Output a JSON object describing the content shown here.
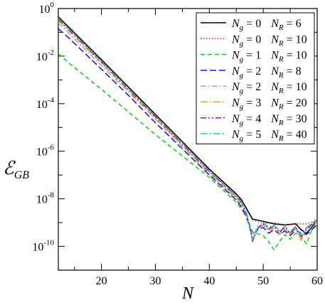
{
  "chart_data": {
    "type": "line",
    "xlabel": "N",
    "ylabel_main": "ℰ",
    "ylabel_sub": "GB",
    "xlim": [
      12,
      60
    ],
    "ylim_exp": [
      -11,
      0
    ],
    "yscale": "log",
    "x_ticks": [
      20,
      30,
      40,
      50,
      60
    ],
    "y_ticks": [
      {
        "exp": 0,
        "label": "0"
      },
      {
        "exp": -2,
        "label": "-2"
      },
      {
        "exp": -4,
        "label": "-4"
      },
      {
        "exp": -6,
        "label": "-6"
      },
      {
        "exp": -8,
        "label": "-8"
      },
      {
        "exp": -10,
        "label": "-10"
      }
    ],
    "legend_position": "top-right",
    "series": [
      {
        "ng": "0",
        "nr": "6",
        "color": "#000000",
        "dash": "",
        "width": 1.6,
        "points": [
          [
            12,
            -0.35
          ],
          [
            14,
            -0.8
          ],
          [
            20,
            -2.15
          ],
          [
            25,
            -3.3
          ],
          [
            30,
            -4.45
          ],
          [
            35,
            -5.6
          ],
          [
            40,
            -6.75
          ],
          [
            45,
            -7.8
          ],
          [
            46,
            -8.05
          ],
          [
            47,
            -8.45
          ],
          [
            48,
            -8.85
          ],
          [
            50,
            -8.95
          ],
          [
            52,
            -9.05
          ],
          [
            54,
            -9.1
          ],
          [
            56,
            -9.05
          ],
          [
            57,
            -9.3
          ],
          [
            58,
            -9.45
          ],
          [
            59,
            -9.2
          ],
          [
            60,
            -8.9
          ]
        ]
      },
      {
        "ng": "0",
        "nr": "10",
        "color": "#ff0000",
        "dash": "1,3",
        "width": 1.6,
        "points": [
          [
            12,
            -0.38
          ],
          [
            14,
            -0.83
          ],
          [
            20,
            -2.2
          ],
          [
            25,
            -3.35
          ],
          [
            30,
            -4.5
          ],
          [
            35,
            -5.65
          ],
          [
            40,
            -6.8
          ],
          [
            45,
            -7.85
          ],
          [
            46,
            -8.1
          ],
          [
            47,
            -8.5
          ],
          [
            48,
            -8.9
          ],
          [
            50,
            -9.05
          ],
          [
            52,
            -9.0
          ],
          [
            54,
            -9.1
          ],
          [
            56,
            -9.05
          ],
          [
            58,
            -9.05
          ],
          [
            60,
            -8.9
          ]
        ]
      },
      {
        "ng": "1",
        "nr": "10",
        "color": "#00cc00",
        "dash": "6,4",
        "width": 1.4,
        "points": [
          [
            12,
            -1.9
          ],
          [
            14,
            -2.3
          ],
          [
            20,
            -3.4
          ],
          [
            25,
            -4.35
          ],
          [
            30,
            -5.3
          ],
          [
            35,
            -6.2
          ],
          [
            40,
            -7.1
          ],
          [
            45,
            -8.15
          ],
          [
            47,
            -8.75
          ],
          [
            48,
            -9.4
          ],
          [
            50,
            -9.55
          ],
          [
            51,
            -9.8
          ],
          [
            52,
            -10.15
          ],
          [
            53,
            -9.8
          ],
          [
            54,
            -9.5
          ],
          [
            55,
            -9.7
          ],
          [
            56,
            -9.45
          ],
          [
            57,
            -9.55
          ],
          [
            58,
            -9.9
          ],
          [
            59,
            -9.3
          ],
          [
            60,
            -9.0
          ]
        ]
      },
      {
        "ng": "2",
        "nr": "8",
        "color": "#0000ff",
        "dash": "9,4",
        "width": 1.4,
        "points": [
          [
            12,
            -0.85
          ],
          [
            14,
            -1.25
          ],
          [
            20,
            -2.55
          ],
          [
            25,
            -3.65
          ],
          [
            30,
            -4.8
          ],
          [
            35,
            -5.9
          ],
          [
            40,
            -7.0
          ],
          [
            45,
            -8.05
          ],
          [
            46,
            -8.35
          ],
          [
            47,
            -8.85
          ],
          [
            48,
            -9.5
          ],
          [
            49,
            -9.3
          ],
          [
            50,
            -9.2
          ],
          [
            51,
            -9.45
          ],
          [
            52,
            -9.3
          ],
          [
            53,
            -9.5
          ],
          [
            54,
            -9.35
          ],
          [
            55,
            -9.55
          ],
          [
            56,
            -9.3
          ],
          [
            57,
            -9.45
          ],
          [
            58,
            -9.5
          ],
          [
            59,
            -9.3
          ],
          [
            60,
            -9.1
          ]
        ]
      },
      {
        "ng": "2",
        "nr": "10",
        "color": "#cc88aa",
        "dash": "8,3,2,3",
        "width": 1.4,
        "points": [
          [
            12,
            -0.6
          ],
          [
            14,
            -1.05
          ],
          [
            20,
            -2.4
          ],
          [
            25,
            -3.5
          ],
          [
            30,
            -4.65
          ],
          [
            35,
            -5.8
          ],
          [
            40,
            -6.95
          ],
          [
            45,
            -8.0
          ],
          [
            46,
            -8.25
          ],
          [
            47,
            -8.75
          ],
          [
            48,
            -9.6
          ],
          [
            49,
            -9.15
          ],
          [
            50,
            -9.1
          ],
          [
            51,
            -9.35
          ],
          [
            52,
            -9.25
          ],
          [
            53,
            -9.5
          ],
          [
            54,
            -9.3
          ],
          [
            55,
            -9.45
          ],
          [
            56,
            -9.25
          ],
          [
            57,
            -9.7
          ],
          [
            58,
            -9.2
          ],
          [
            59,
            -9.05
          ],
          [
            60,
            -9.0
          ]
        ]
      },
      {
        "ng": "3",
        "nr": "20",
        "color": "#ff9900",
        "dash": "10,3,2,3",
        "width": 1.4,
        "points": [
          [
            12,
            -0.5
          ],
          [
            14,
            -0.95
          ],
          [
            20,
            -2.3
          ],
          [
            25,
            -3.45
          ],
          [
            30,
            -4.6
          ],
          [
            35,
            -5.75
          ],
          [
            40,
            -6.9
          ],
          [
            45,
            -7.95
          ],
          [
            46,
            -8.2
          ],
          [
            47,
            -8.7
          ],
          [
            48,
            -9.7
          ],
          [
            49,
            -9.2
          ],
          [
            50,
            -9.1
          ],
          [
            51,
            -9.3
          ],
          [
            52,
            -9.2
          ],
          [
            53,
            -9.45
          ],
          [
            54,
            -9.25
          ],
          [
            55,
            -9.5
          ],
          [
            56,
            -9.2
          ],
          [
            57,
            -9.75
          ],
          [
            58,
            -9.25
          ],
          [
            59,
            -9.05
          ],
          [
            60,
            -8.95
          ]
        ]
      },
      {
        "ng": "4",
        "nr": "30",
        "color": "#8800aa",
        "dash": "8,3,2,3,2,3",
        "width": 1.4,
        "points": [
          [
            12,
            -0.45
          ],
          [
            14,
            -0.9
          ],
          [
            20,
            -2.25
          ],
          [
            25,
            -3.4
          ],
          [
            30,
            -4.55
          ],
          [
            35,
            -5.7
          ],
          [
            40,
            -6.85
          ],
          [
            45,
            -7.9
          ],
          [
            46,
            -8.15
          ],
          [
            47,
            -8.7
          ],
          [
            48,
            -9.8
          ],
          [
            49,
            -9.25
          ],
          [
            50,
            -9.05
          ],
          [
            51,
            -9.25
          ],
          [
            52,
            -9.15
          ],
          [
            53,
            -9.4
          ],
          [
            54,
            -9.2
          ],
          [
            55,
            -9.45
          ],
          [
            56,
            -9.2
          ],
          [
            57,
            -9.6
          ],
          [
            58,
            -9.3
          ],
          [
            59,
            -9.1
          ],
          [
            60,
            -8.9
          ]
        ]
      },
      {
        "ng": "5",
        "nr": "40",
        "color": "#00cccc",
        "dash": "10,3,2,3",
        "width": 1.4,
        "points": [
          [
            12,
            -0.42
          ],
          [
            14,
            -0.87
          ],
          [
            20,
            -2.22
          ],
          [
            25,
            -3.37
          ],
          [
            30,
            -4.52
          ],
          [
            35,
            -5.67
          ],
          [
            40,
            -6.82
          ],
          [
            45,
            -7.88
          ],
          [
            46,
            -8.12
          ],
          [
            47,
            -8.65
          ],
          [
            48,
            -9.75
          ],
          [
            49,
            -9.2
          ],
          [
            50,
            -9.0
          ],
          [
            51,
            -9.2
          ],
          [
            52,
            -9.1
          ],
          [
            53,
            -9.35
          ],
          [
            54,
            -9.15
          ],
          [
            55,
            -9.4
          ],
          [
            56,
            -9.15
          ],
          [
            57,
            -9.55
          ],
          [
            58,
            -9.25
          ],
          [
            59,
            -9.0
          ],
          [
            60,
            -8.85
          ]
        ]
      }
    ]
  }
}
